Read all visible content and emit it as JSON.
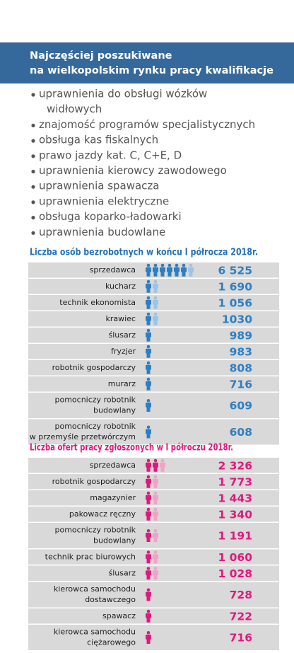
{
  "header": {
    "title": [
      "Najczęściej poszukiwane",
      "na wielkopolskim rynku pracy  kwalifikacje"
    ]
  },
  "qualifications": [
    [
      "uprawnienia do obsługi wózków",
      "widłowych"
    ],
    [
      "znajomość programów specjalistycznych"
    ],
    [
      "obsługa kas fiskalnych"
    ],
    [
      "prawo jazdy kat. C, C+E, D"
    ],
    [
      "uprawnienia kierowcy zawodowego"
    ],
    [
      "uprawnienia spawacza"
    ],
    [
      "uprawnienia elektryczne"
    ],
    [
      "obsługa koparko-ładowarki"
    ],
    [
      "uprawnienia budowlane"
    ]
  ],
  "unemployed": {
    "title": "Liczba osób bezrobotnych w końcu I półrocza 2018r.",
    "rows": [
      {
        "label": [
          "sprzedawca"
        ],
        "value": 6525,
        "value_label": "6 525"
      },
      {
        "label": [
          "kucharz"
        ],
        "value": 1690,
        "value_label": "1 690"
      },
      {
        "label": [
          "technik ekonomista"
        ],
        "value": 1056,
        "value_label": "1 056"
      },
      {
        "label": [
          "krawiec"
        ],
        "value": 1030,
        "value_label": "1030"
      },
      {
        "label": [
          "ślusarz"
        ],
        "value": 989,
        "value_label": "989"
      },
      {
        "label": [
          "fryzjer"
        ],
        "value": 983,
        "value_label": "983"
      },
      {
        "label": [
          "robotnik gospodarczy"
        ],
        "value": 808,
        "value_label": "808"
      },
      {
        "label": [
          "murarz"
        ],
        "value": 716,
        "value_label": "716"
      },
      {
        "label": [
          "pomocniczy robotnik",
          "budowlany"
        ],
        "value": 609,
        "value_label": "609"
      },
      {
        "label": [
          "pomocniczy robotnik",
          "w przemyśle przetwórczym"
        ],
        "value": 608,
        "value_label": "608"
      }
    ]
  },
  "job_offers": {
    "title": "Liczba ofert pracy zgłoszonych w I półroczu 2018r.",
    "rows": [
      {
        "label": [
          "sprzedawca"
        ],
        "value": 2326,
        "value_label": "2 326"
      },
      {
        "label": [
          "robotnik gospodarczy"
        ],
        "value": 1773,
        "value_label": "1 773"
      },
      {
        "label": [
          "magazynier"
        ],
        "value": 1443,
        "value_label": "1 443"
      },
      {
        "label": [
          "pakowacz ręczny"
        ],
        "value": 1340,
        "value_label": "1 340"
      },
      {
        "label": [
          "pomocniczy robotnik",
          "budowlany"
        ],
        "value": 1191,
        "value_label": "1 191"
      },
      {
        "label": [
          "technik prac biurowych"
        ],
        "value": 1060,
        "value_label": "1 060"
      },
      {
        "label": [
          "ślusarz"
        ],
        "value": 1028,
        "value_label": "1 028"
      },
      {
        "label": [
          "kierowca samochodu",
          "dostawczego"
        ],
        "value": 728,
        "value_label": "728"
      },
      {
        "label": [
          "spawacz"
        ],
        "value": 722,
        "value_label": "722"
      },
      {
        "label": [
          "kierowca samochodu",
          "ciężarowego"
        ],
        "value": 716,
        "value_label": "716"
      }
    ]
  }
}
